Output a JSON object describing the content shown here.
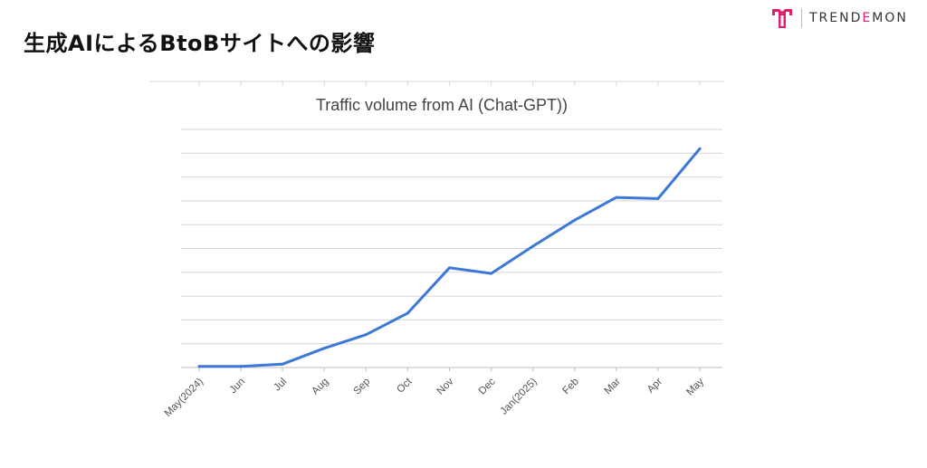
{
  "page": {
    "title": "生成AIによるBtoBサイトへの影響"
  },
  "brand": {
    "name_part1": "TREND",
    "name_part2": "E",
    "name_part3": "MON",
    "logo_icon": "trendemon-logo-icon",
    "accent_color": "#e0206f"
  },
  "chart_data": {
    "type": "line",
    "title": "Traffic volume from AI (Chat-GPT))",
    "xlabel": "",
    "ylabel": "",
    "categories": [
      "May(2024)",
      "Jun",
      "Jul",
      "Aug",
      "Sep",
      "Oct",
      "Nov",
      "Dec",
      "Jan(2025)",
      "Feb",
      "Mar",
      "Apr",
      "May"
    ],
    "series": [
      {
        "values": [
          0.1,
          0.1,
          0.3,
          1.7,
          2.9,
          4.8,
          8.8,
          8.3,
          10.7,
          13.0,
          15.0,
          14.9,
          19.3
        ]
      }
    ],
    "ylim": [
      0,
      21
    ],
    "y_tick_labels_shown": false,
    "grid": true,
    "line_color": "#3c78d8"
  }
}
